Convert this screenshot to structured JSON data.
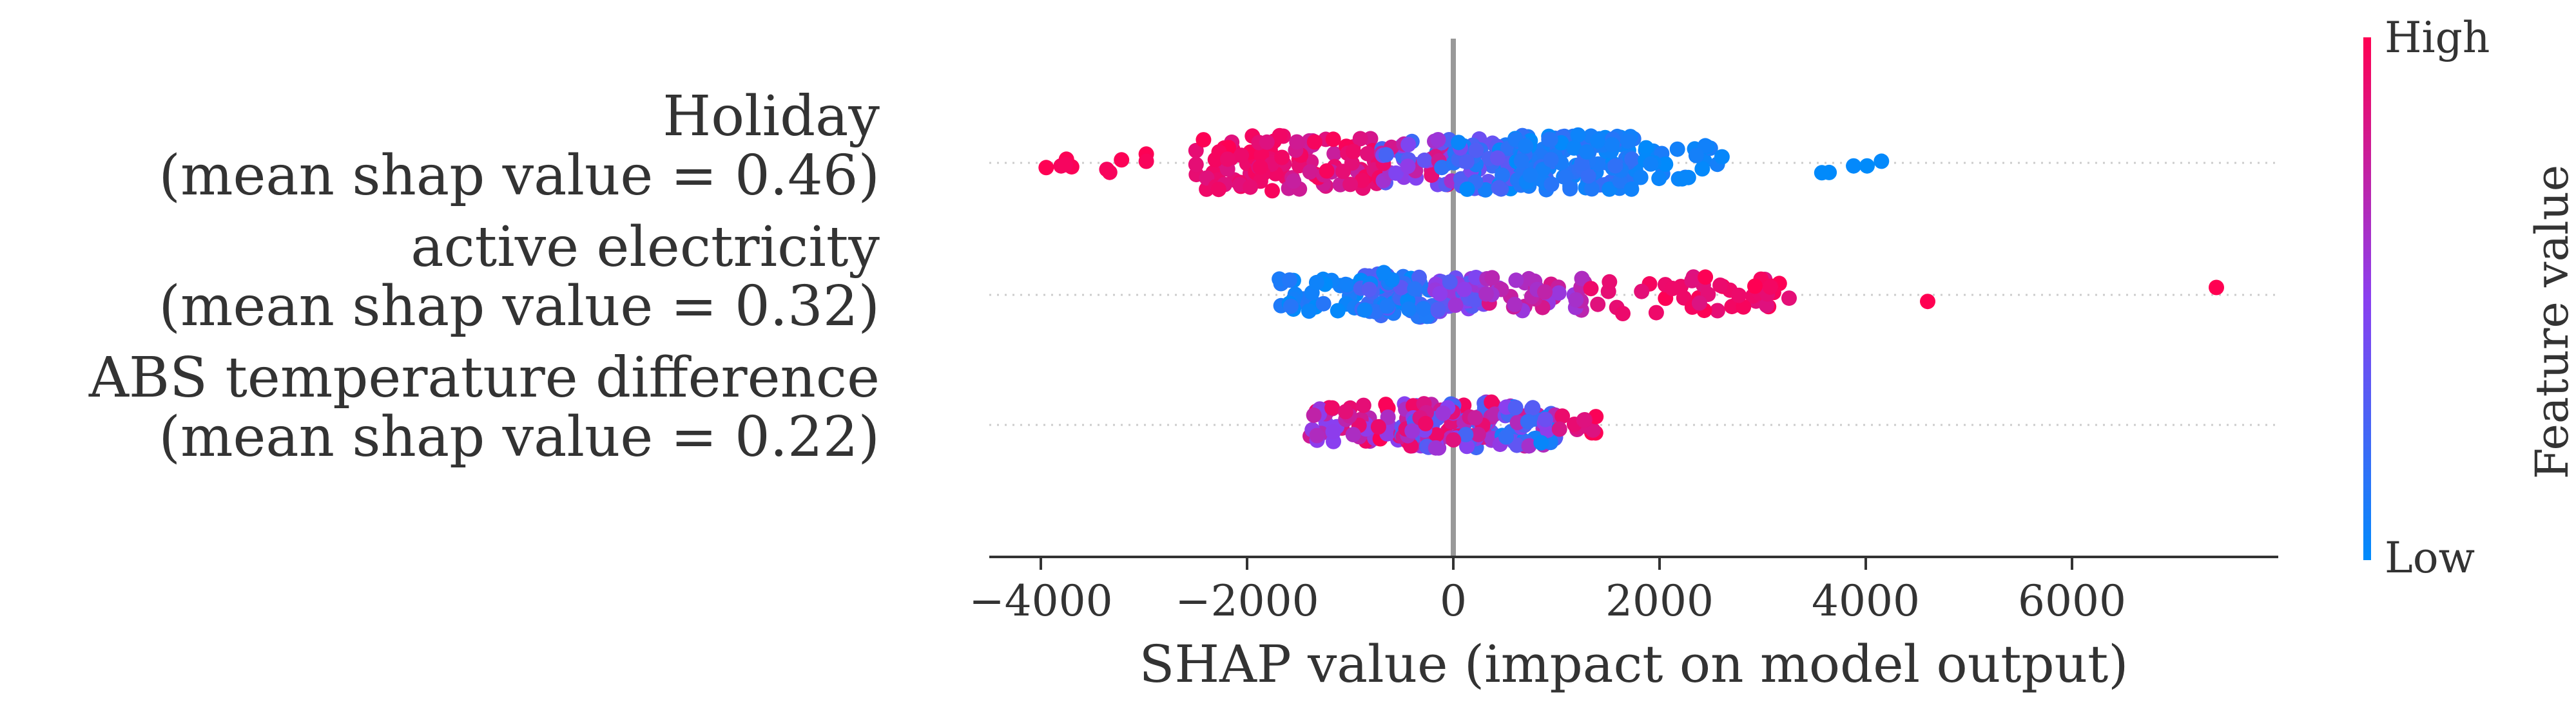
{
  "chart_data": {
    "type": "scatter",
    "subtype": "shap-beeswarm",
    "xlabel": "SHAP value (impact on model output)",
    "xlim": [
      -4500,
      8000
    ],
    "xticks": [
      -4000,
      -2000,
      0,
      2000,
      4000,
      6000
    ],
    "xtick_labels": [
      "−4000",
      "−2000",
      "0",
      "2000",
      "4000",
      "6000"
    ],
    "colorbar": {
      "title": "Feature value",
      "high_label": "High",
      "low_label": "Low",
      "high_color": "#ff0052",
      "low_color": "#008bfb"
    },
    "features": [
      {
        "name": "Holiday",
        "stat": "(mean shap value = 0.46)",
        "spread": 0.75,
        "segments": [
          {
            "from": -4000,
            "to": -3700,
            "n": 5,
            "fmin": 0.95,
            "fmax": 1.0
          },
          {
            "from": -3500,
            "to": -2900,
            "n": 5,
            "fmin": 0.95,
            "fmax": 1.0
          },
          {
            "from": -2500,
            "to": -1600,
            "n": 60,
            "fmin": 0.85,
            "fmax": 1.0
          },
          {
            "from": -1600,
            "to": -700,
            "n": 55,
            "fmin": 0.75,
            "fmax": 1.0
          },
          {
            "from": -700,
            "to": 0,
            "n": 45,
            "fmin": 0.15,
            "fmax": 0.95
          },
          {
            "from": 0,
            "to": 600,
            "n": 60,
            "fmin": 0.0,
            "fmax": 0.45
          },
          {
            "from": 600,
            "to": 1800,
            "n": 140,
            "fmin": 0.0,
            "fmax": 0.2
          },
          {
            "from": 1800,
            "to": 2600,
            "n": 25,
            "fmin": 0.0,
            "fmax": 0.1
          },
          {
            "from": 2600,
            "to": 4200,
            "n": 6,
            "fmin": 0.0,
            "fmax": 0.05
          }
        ]
      },
      {
        "name": "active electricity",
        "stat": "(mean shap value = 0.32)",
        "spread": 0.6,
        "segments": [
          {
            "from": -1700,
            "to": -900,
            "n": 35,
            "fmin": 0.0,
            "fmax": 0.15
          },
          {
            "from": -900,
            "to": -200,
            "n": 80,
            "fmin": 0.0,
            "fmax": 0.35
          },
          {
            "from": -200,
            "to": 300,
            "n": 40,
            "fmin": 0.3,
            "fmax": 0.6
          },
          {
            "from": 300,
            "to": 1300,
            "n": 40,
            "fmin": 0.55,
            "fmax": 0.85
          },
          {
            "from": 1300,
            "to": 3300,
            "n": 45,
            "fmin": 0.85,
            "fmax": 1.0
          },
          {
            "from": 4600,
            "to": 4600,
            "n": 1,
            "fmin": 1.0,
            "fmax": 1.0
          },
          {
            "from": 7400,
            "to": 7400,
            "n": 1,
            "fmin": 1.0,
            "fmax": 1.0
          }
        ]
      },
      {
        "name": "ABS temperature difference",
        "stat": "(mean shap value = 0.22)",
        "spread": 0.62,
        "segments": [
          {
            "from": -1400,
            "to": -500,
            "n": 50,
            "fmin": 0.45,
            "fmax": 1.0
          },
          {
            "from": -500,
            "to": 400,
            "n": 110,
            "fmin": 0.2,
            "fmax": 0.95
          },
          {
            "from": 400,
            "to": 1000,
            "n": 55,
            "fmin": 0.0,
            "fmax": 0.8
          },
          {
            "from": 1000,
            "to": 1400,
            "n": 12,
            "fmin": 0.8,
            "fmax": 1.0
          }
        ]
      }
    ]
  }
}
